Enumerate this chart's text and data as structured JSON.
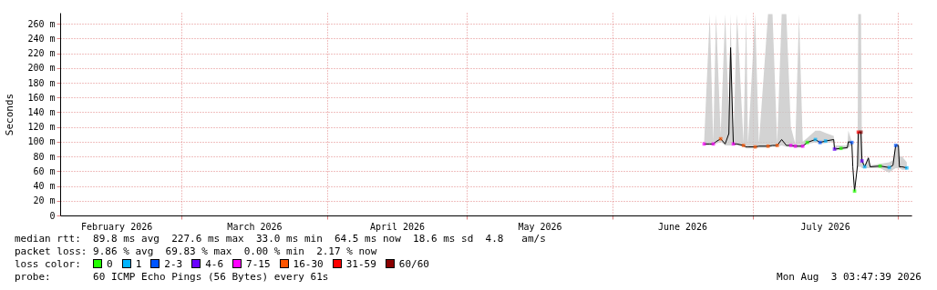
{
  "chart_data": {
    "type": "line",
    "ylabel": "Seconds",
    "legend_title": "loss color:",
    "legend": "bottom",
    "grid": true,
    "xlim": [
      "2026-02-03",
      "2026-08-04"
    ],
    "xticks": [
      {
        "value": "2026-02-15",
        "label": "February 2026"
      },
      {
        "value": "2026-03-01",
        "label": null
      },
      {
        "value": "2026-03-16T12:00",
        "label": "March 2026"
      },
      {
        "value": "2026-04-01",
        "label": null
      },
      {
        "value": "2026-04-16",
        "label": "April 2026"
      },
      {
        "value": "2026-05-01",
        "label": null
      },
      {
        "value": "2026-05-16T12:00",
        "label": "May 2026"
      },
      {
        "value": "2026-06-01",
        "label": null
      },
      {
        "value": "2026-06-16",
        "label": "June 2026"
      },
      {
        "value": "2026-07-01",
        "label": null
      },
      {
        "value": "2026-07-16T12:00",
        "label": "July 2026"
      },
      {
        "value": "2026-08-01",
        "label": null
      }
    ],
    "ylim": [
      0,
      275
    ],
    "yticks": [
      0,
      {
        "value": 20,
        "label": "20 m"
      },
      {
        "value": 40,
        "label": "40 m"
      },
      {
        "value": 60,
        "label": "60 m"
      },
      {
        "value": 80,
        "label": "80 m"
      },
      {
        "value": 100,
        "label": "100 m"
      },
      {
        "value": 120,
        "label": "120 m"
      },
      {
        "value": 140,
        "label": "140 m"
      },
      {
        "value": 160,
        "label": "160 m"
      },
      {
        "value": 180,
        "label": "180 m"
      },
      {
        "value": 200,
        "label": "200 m"
      },
      {
        "value": 220,
        "label": "220 m"
      },
      {
        "value": 240,
        "label": "240 m"
      },
      {
        "value": 260,
        "label": "260 m"
      }
    ],
    "series": [
      {
        "color": "#000000",
        "x": [
          "2026-06-20T16:00",
          "2026-06-21T21:00",
          "2026-06-22T15:00",
          "2026-06-23T05:00",
          "2026-06-24T05:00",
          "2026-06-25T04:00",
          "2026-06-25T23:00",
          "2026-06-26T08:00",
          "2026-06-26T22:00",
          "2026-06-27T17:00",
          "2026-06-29T02:00",
          "2026-06-29T16:00",
          "2026-06-30T01:00",
          "2026-07-01T14:00",
          "2026-07-02T09:00",
          "2026-07-04T08:00",
          "2026-07-05T07:00",
          "2026-07-06T07:00",
          "2026-07-07T06:00",
          "2026-07-08T06:00",
          "2026-07-09T05:00",
          "2026-07-10T04:00",
          "2026-07-10T23:00",
          "2026-07-11T18:00",
          "2026-07-12T17:00",
          "2026-07-14T11:00",
          "2026-07-15T11:00",
          "2026-07-16T15:00",
          "2026-07-18T09:00",
          "2026-07-18T13:00",
          "2026-07-19T22:00",
          "2026-07-21T07:00",
          "2026-07-21T12:00",
          "2026-07-22T06:00",
          "2026-07-22T11:00",
          "2026-07-22T20:00",
          "2026-07-23T11:00",
          "2026-07-23T15:00",
          "2026-07-24T05:00",
          "2026-07-24T10:00",
          "2026-07-25T00:00",
          "2026-07-25T19:00",
          "2026-07-26T04:00",
          "2026-07-28T07:00",
          "2026-07-30T06:00",
          "2026-07-31T01:00",
          "2026-07-31T15:00",
          "2026-08-01T05:00",
          "2026-08-01T10:00",
          "2026-08-02T00:00",
          "2026-08-03T00:00"
        ],
        "values": [
          97,
          97,
          97,
          100,
          104,
          97,
          111,
          227.6,
          97,
          97,
          95,
          93,
          93,
          93,
          94,
          94,
          95,
          95,
          103,
          95,
          95,
          94,
          94,
          94,
          99,
          103,
          99,
          101,
          103,
          90,
          91,
          92,
          100,
          99,
          66,
          33,
          68,
          113,
          113,
          74,
          66,
          78,
          66,
          67,
          65,
          68,
          95,
          95,
          66,
          66,
          64.5
        ],
        "lower": [
          95,
          95,
          95,
          97,
          100,
          95,
          95,
          95,
          95,
          95,
          93,
          91,
          91,
          91,
          92,
          92,
          93,
          93,
          95,
          93,
          93,
          92,
          92,
          92,
          97,
          99,
          97,
          98,
          100,
          88,
          89,
          90,
          92,
          95,
          64,
          31,
          64,
          66,
          66,
          64,
          64,
          64,
          64,
          64,
          58,
          62,
          64,
          64,
          64,
          62,
          62
        ],
        "upper": [
          99,
          273,
          100,
          273,
          110,
          273,
          140,
          273,
          100,
          273,
          100,
          273,
          96,
          273,
          97,
          273,
          273,
          98,
          273,
          273,
          120,
          97,
          273,
          100,
          105,
          115,
          115,
          112,
          108,
          95,
          95,
          95,
          115,
          100,
          70,
          35,
          70,
          273,
          273,
          80,
          68,
          80,
          68,
          70,
          72,
          75,
          97,
          97,
          80,
          80,
          72
        ]
      },
      {
        "type": "scatter",
        "name": "0",
        "color": "#22ff00",
        "marker": "square",
        "x": [
          "2026-07-12T17:00",
          "2026-07-19T22:00",
          "2026-07-22T20:00",
          "2026-07-28T07:00"
        ],
        "values": [
          99,
          91,
          33,
          67
        ]
      },
      {
        "type": "scatter",
        "name": "1",
        "color": "#00b4ff",
        "marker": "square",
        "x": [
          "2026-07-14T11:00",
          "2026-07-16T15:00",
          "2026-07-25T00:00",
          "2026-07-30T06:00",
          "2026-08-03T00:00"
        ],
        "values": [
          103,
          101,
          66,
          65,
          64.5
        ]
      },
      {
        "type": "scatter",
        "name": "2-3",
        "color": "#0055ff",
        "marker": "square",
        "x": [
          "2026-07-15T11:00",
          "2026-07-22T06:00",
          "2026-07-31T15:00"
        ],
        "values": [
          99,
          99,
          95
        ]
      },
      {
        "type": "scatter",
        "name": "4-6",
        "color": "#6a00ff",
        "marker": "square",
        "x": [
          "2026-07-18T13:00",
          "2026-07-24T10:00"
        ],
        "values": [
          90,
          74
        ]
      },
      {
        "type": "scatter",
        "name": "7-15",
        "color": "#ff00ff",
        "marker": "square",
        "x": [
          "2026-06-20T16:00",
          "2026-06-22T15:00",
          "2026-06-26T22:00",
          "2026-07-09T05:00",
          "2026-07-10T04:00",
          "2026-07-11T18:00"
        ],
        "values": [
          97,
          97,
          97,
          95,
          94,
          94
        ]
      },
      {
        "type": "scatter",
        "name": "16-30",
        "color": "#ff5500",
        "marker": "square",
        "x": [
          "2026-06-24T05:00",
          "2026-06-29T02:00",
          "2026-07-01T14:00",
          "2026-07-04T08:00",
          "2026-07-06T07:00"
        ],
        "values": [
          104,
          95,
          93,
          94,
          95
        ]
      },
      {
        "type": "scatter",
        "name": "31-59",
        "color": "#ff0000",
        "marker": "square",
        "x": [
          "2026-07-23T15:00"
        ],
        "values": [
          113
        ]
      },
      {
        "type": "scatter",
        "name": "60/60",
        "color": "#8a0000",
        "marker": "square",
        "x": [
          "2026-07-24T05:00"
        ],
        "values": [
          113
        ]
      }
    ],
    "annotations": [
      "median rtt:  89.8 ms avg  227.6 ms max  33.0 ms min  64.5 ms now  18.6 ms sd  4.8   am/s",
      "packet loss: 9.86 % avg  69.83 % max  0.00 % min  2.17 % now",
      "probe:       60 ICMP Echo Pings (56 Bytes) every 61s",
      "Mon Aug  3 03:47:39 2026"
    ]
  }
}
